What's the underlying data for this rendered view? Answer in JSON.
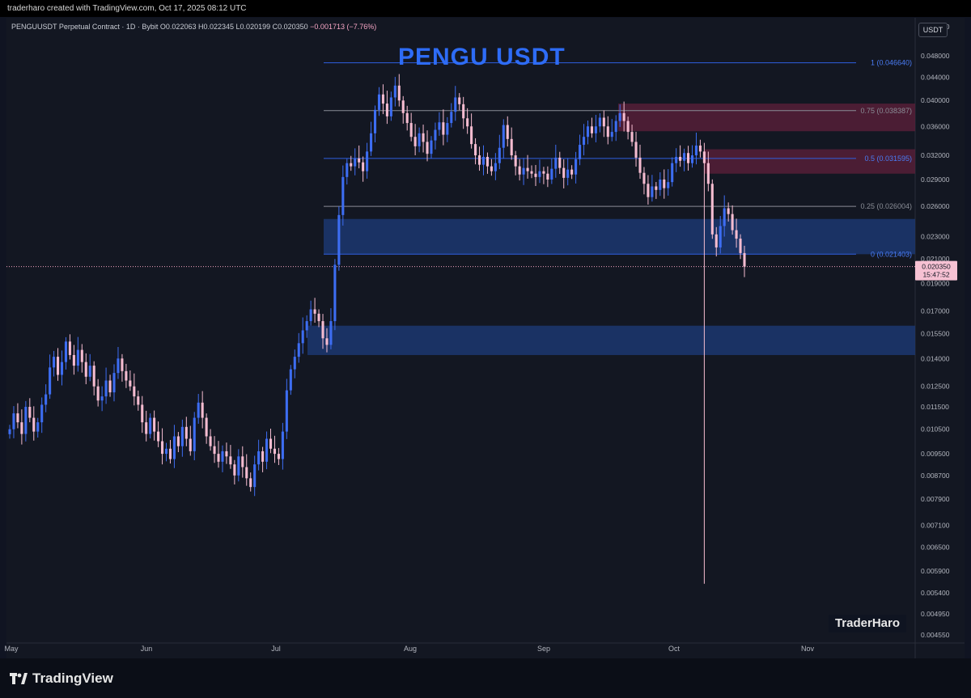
{
  "header": {
    "credit": "traderharo created with TradingView.com, Oct 17, 2025 08:12 UTC",
    "symbol": "PENGUUSDT Perpetual Contract · 1D · Bybit",
    "open": "O0.022063",
    "high": "H0.022345",
    "low": "L0.020199",
    "close": "C0.020350",
    "change": "−0.001713 (−7.76%)",
    "currency": "USDT"
  },
  "annotation_title": "PENGU USDT",
  "watermark": "TraderHaro",
  "brand": "TradingView",
  "colors": {
    "bull": "#3d6df2",
    "bear": "#f5bcd0",
    "fib_line": "#2f5fe0",
    "zone_blue": "#1d3a75",
    "zone_red": "#5a1f3a"
  },
  "chart_data": {
    "type": "candlestick",
    "y_scale": "log",
    "ylim": [
      0.0044,
      0.056
    ],
    "x_labels": [
      "May",
      "Jun",
      "Jul",
      "Aug",
      "Sep",
      "Oct",
      "Nov"
    ],
    "y_ticks": [
      "0.054000",
      "0.048000",
      "0.044000",
      "0.040000",
      "0.036000",
      "0.032000",
      "0.029000",
      "0.026000",
      "0.023000",
      "0.021000",
      "0.019000",
      "0.017000",
      "0.015500",
      "0.014000",
      "0.012500",
      "0.011500",
      "0.010500",
      "0.009500",
      "0.008700",
      "0.007900",
      "0.007100",
      "0.006500",
      "0.005900",
      "0.005400",
      "0.004950",
      "0.004550"
    ],
    "y_tick_values": [
      0.054,
      0.048,
      0.044,
      0.04,
      0.036,
      0.032,
      0.029,
      0.026,
      0.023,
      0.021,
      0.019,
      0.017,
      0.0155,
      0.014,
      0.0125,
      0.0115,
      0.0105,
      0.0095,
      0.0087,
      0.0079,
      0.0071,
      0.0065,
      0.0059,
      0.0054,
      0.00495,
      0.00455
    ],
    "fib_levels": [
      {
        "label": "1 (0.046640)",
        "value": 0.04664
      },
      {
        "label": "0.75 (0.038387)",
        "value": 0.038387
      },
      {
        "label": "0.5 (0.031595)",
        "value": 0.031595
      },
      {
        "label": "0.25 (0.026004)",
        "value": 0.026004
      },
      {
        "label": "0 (0.021403)",
        "value": 0.021403
      }
    ],
    "zones": [
      {
        "kind": "supply",
        "top": 0.0395,
        "bottom": 0.0353
      },
      {
        "kind": "supply",
        "top": 0.0328,
        "bottom": 0.0297
      },
      {
        "kind": "demand",
        "top": 0.0247,
        "bottom": 0.0214
      },
      {
        "kind": "demand",
        "top": 0.016,
        "bottom": 0.0142
      }
    ],
    "last_price": "0.020350",
    "last_price_value": 0.02035,
    "countdown": "15:47:52",
    "wick_low": 0.0056,
    "closes": [
      0.0105,
      0.0112,
      0.0108,
      0.0103,
      0.0115,
      0.011,
      0.0104,
      0.0108,
      0.0116,
      0.0121,
      0.0135,
      0.0141,
      0.0131,
      0.0138,
      0.015,
      0.0142,
      0.0136,
      0.0145,
      0.0138,
      0.013,
      0.0136,
      0.0125,
      0.0118,
      0.012,
      0.0128,
      0.0122,
      0.0132,
      0.014,
      0.0133,
      0.0128,
      0.0125,
      0.012,
      0.0116,
      0.0108,
      0.0103,
      0.011,
      0.0104,
      0.01,
      0.0095,
      0.0097,
      0.0093,
      0.0102,
      0.0098,
      0.0106,
      0.0101,
      0.0096,
      0.011,
      0.0117,
      0.011,
      0.0102,
      0.0098,
      0.0095,
      0.0092,
      0.0096,
      0.0094,
      0.0091,
      0.0087,
      0.0094,
      0.009,
      0.0086,
      0.0083,
      0.0091,
      0.0096,
      0.0092,
      0.0101,
      0.0097,
      0.0095,
      0.0093,
      0.0104,
      0.0123,
      0.0134,
      0.0141,
      0.0149,
      0.0157,
      0.0163,
      0.0171,
      0.0168,
      0.0163,
      0.0152,
      0.0148,
      0.0163,
      0.0205,
      0.0251,
      0.0293,
      0.031,
      0.0306,
      0.0316,
      0.0311,
      0.03,
      0.0325,
      0.035,
      0.0385,
      0.041,
      0.0395,
      0.0375,
      0.0405,
      0.0425,
      0.04,
      0.038,
      0.0365,
      0.0345,
      0.0332,
      0.035,
      0.0338,
      0.0322,
      0.034,
      0.0355,
      0.0366,
      0.0348,
      0.0365,
      0.0382,
      0.0405,
      0.0394,
      0.0372,
      0.036,
      0.0335,
      0.032,
      0.0308,
      0.0318,
      0.0306,
      0.03,
      0.031,
      0.033,
      0.0362,
      0.0342,
      0.032,
      0.0306,
      0.0296,
      0.0304,
      0.03,
      0.0297,
      0.0293,
      0.03,
      0.0297,
      0.029,
      0.0303,
      0.0317,
      0.0304,
      0.0292,
      0.0302,
      0.0296,
      0.0315,
      0.0334,
      0.0345,
      0.036,
      0.035,
      0.036,
      0.0373,
      0.036,
      0.0345,
      0.0352,
      0.0368,
      0.038,
      0.0368,
      0.0352,
      0.0338,
      0.0317,
      0.0298,
      0.0285,
      0.027,
      0.0282,
      0.0278,
      0.029,
      0.028,
      0.0287,
      0.031,
      0.0318,
      0.0313,
      0.0323,
      0.031,
      0.032,
      0.0333,
      0.0325,
      0.031,
      0.0285,
      0.0232,
      0.022,
      0.024,
      0.0258,
      0.0252,
      0.0236,
      0.0228,
      0.0215,
      0.02035
    ]
  }
}
